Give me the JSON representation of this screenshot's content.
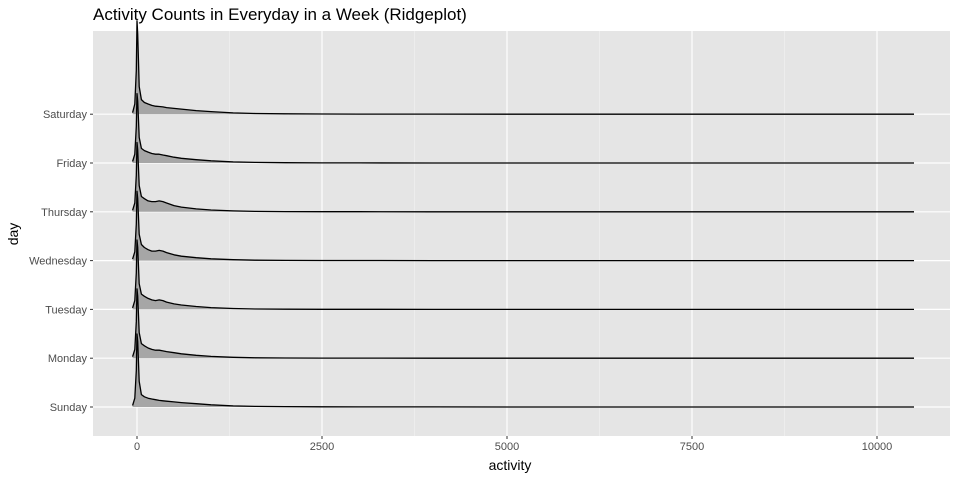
{
  "chart_data": {
    "type": "ridgeline",
    "title": "Activity Counts in Everyday in a Week (Ridgeplot)",
    "xlabel": "activity",
    "ylabel": "day",
    "xlim": [
      -120,
      10500
    ],
    "x_ticks": [
      0,
      2500,
      5000,
      7500,
      10000
    ],
    "x_tick_labels": [
      "0",
      "2500",
      "5000",
      "7500",
      "10000"
    ],
    "categories": [
      "Sunday",
      "Monday",
      "Tuesday",
      "Wednesday",
      "Thursday",
      "Friday",
      "Saturday"
    ],
    "x": [
      -60,
      -30,
      -10,
      0,
      10,
      30,
      60,
      100,
      150,
      200,
      250,
      300,
      350,
      400,
      500,
      600,
      800,
      1000,
      1300,
      1600,
      2000,
      2500,
      3000,
      4000,
      5000,
      6000,
      8000,
      10500
    ],
    "series": [
      {
        "name": "Sunday",
        "values": [
          0.02,
          0.12,
          0.5,
          1.0,
          0.9,
          0.35,
          0.17,
          0.14,
          0.12,
          0.11,
          0.1,
          0.09,
          0.085,
          0.08,
          0.07,
          0.06,
          0.045,
          0.03,
          0.015,
          0.008,
          0.005,
          0.003,
          0.002,
          0.001,
          0,
          0,
          0,
          0
        ]
      },
      {
        "name": "Monday",
        "values": [
          0.02,
          0.12,
          0.5,
          0.95,
          0.85,
          0.35,
          0.2,
          0.17,
          0.14,
          0.12,
          0.11,
          0.11,
          0.1,
          0.09,
          0.075,
          0.06,
          0.04,
          0.025,
          0.012,
          0.006,
          0.003,
          0.002,
          0.001,
          0,
          0,
          0,
          0,
          0
        ]
      },
      {
        "name": "Tuesday",
        "values": [
          0.02,
          0.12,
          0.5,
          0.95,
          0.85,
          0.35,
          0.21,
          0.18,
          0.15,
          0.13,
          0.12,
          0.13,
          0.12,
          0.1,
          0.075,
          0.06,
          0.04,
          0.025,
          0.012,
          0.006,
          0.003,
          0.002,
          0.001,
          0,
          0,
          0,
          0,
          0
        ]
      },
      {
        "name": "Wednesday",
        "values": [
          0.02,
          0.12,
          0.5,
          0.95,
          0.85,
          0.36,
          0.22,
          0.18,
          0.15,
          0.13,
          0.13,
          0.14,
          0.13,
          0.11,
          0.08,
          0.06,
          0.04,
          0.025,
          0.012,
          0.006,
          0.003,
          0.002,
          0.001,
          0,
          0,
          0,
          0,
          0
        ]
      },
      {
        "name": "Thursday",
        "values": [
          0.02,
          0.12,
          0.5,
          0.95,
          0.85,
          0.36,
          0.21,
          0.18,
          0.15,
          0.14,
          0.14,
          0.15,
          0.14,
          0.12,
          0.085,
          0.065,
          0.04,
          0.025,
          0.012,
          0.006,
          0.003,
          0.002,
          0.001,
          0,
          0,
          0,
          0,
          0
        ]
      },
      {
        "name": "Friday",
        "values": [
          0.02,
          0.12,
          0.5,
          0.95,
          0.85,
          0.35,
          0.2,
          0.17,
          0.15,
          0.13,
          0.12,
          0.12,
          0.11,
          0.1,
          0.08,
          0.065,
          0.045,
          0.03,
          0.015,
          0.008,
          0.004,
          0.002,
          0.001,
          0,
          0,
          0,
          0,
          0
        ]
      },
      {
        "name": "Saturday",
        "values": [
          0.02,
          0.14,
          0.6,
          1.28,
          1.1,
          0.38,
          0.2,
          0.16,
          0.14,
          0.12,
          0.11,
          0.105,
          0.1,
          0.09,
          0.08,
          0.07,
          0.05,
          0.035,
          0.018,
          0.01,
          0.005,
          0.003,
          0.002,
          0.001,
          0,
          0,
          0,
          0
        ]
      }
    ],
    "grid": true,
    "legend": "none",
    "colors": {
      "panel_background": "#e5e5e5",
      "grid_major": "#ffffff",
      "grid_minor": "#f2f2f2",
      "ridge_fill": "#a6a6a6",
      "ridge_line": "#000000",
      "tick_text": "#4d4d4d",
      "tick_mark": "#333333"
    }
  }
}
